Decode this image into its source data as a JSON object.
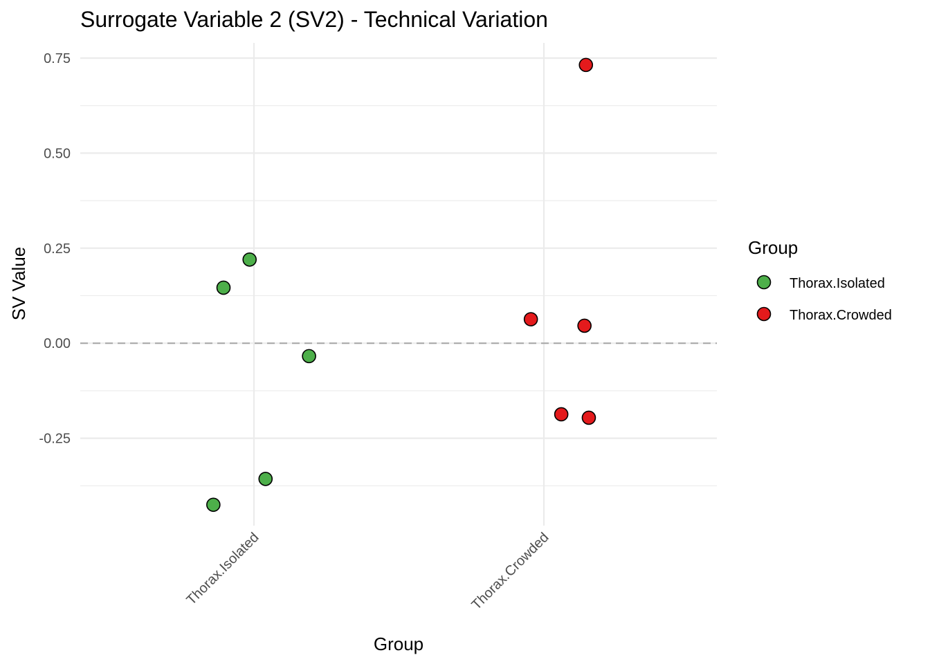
{
  "chart_data": {
    "type": "scatter",
    "title": "Surrogate Variable 2 (SV2) - Technical Variation",
    "xlabel": "Group",
    "ylabel": "SV Value",
    "categories": [
      "Thorax.Isolated",
      "Thorax.Crowded"
    ],
    "y_ticks": [
      -0.25,
      0.0,
      0.25,
      0.5,
      0.75
    ],
    "y_tick_labels": [
      "-0.25",
      "0.00",
      "0.25",
      "0.50",
      "0.75"
    ],
    "ylim": [
      -0.48,
      0.79
    ],
    "reference_line": 0.0,
    "grid": true,
    "legend": {
      "title": "Group",
      "placement": "right",
      "entries": [
        "Thorax.Isolated",
        "Thorax.Crowded"
      ]
    },
    "series": [
      {
        "name": "Thorax.Isolated",
        "color": "#4DAF4A",
        "points": [
          {
            "x": "Thorax.Isolated",
            "jitter": -0.14,
            "y": -0.425
          },
          {
            "x": "Thorax.Isolated",
            "jitter": 0.04,
            "y": -0.357
          },
          {
            "x": "Thorax.Isolated",
            "jitter": -0.105,
            "y": 0.146
          },
          {
            "x": "Thorax.Isolated",
            "jitter": -0.015,
            "y": 0.22
          },
          {
            "x": "Thorax.Isolated",
            "jitter": 0.19,
            "y": -0.034
          }
        ]
      },
      {
        "name": "Thorax.Crowded",
        "color": "#E41A1C",
        "points": [
          {
            "x": "Thorax.Crowded",
            "jitter": 0.145,
            "y": 0.732
          },
          {
            "x": "Thorax.Crowded",
            "jitter": -0.045,
            "y": 0.063
          },
          {
            "x": "Thorax.Crowded",
            "jitter": 0.14,
            "y": 0.046
          },
          {
            "x": "Thorax.Crowded",
            "jitter": 0.06,
            "y": -0.187
          },
          {
            "x": "Thorax.Crowded",
            "jitter": 0.155,
            "y": -0.196
          }
        ]
      }
    ]
  }
}
